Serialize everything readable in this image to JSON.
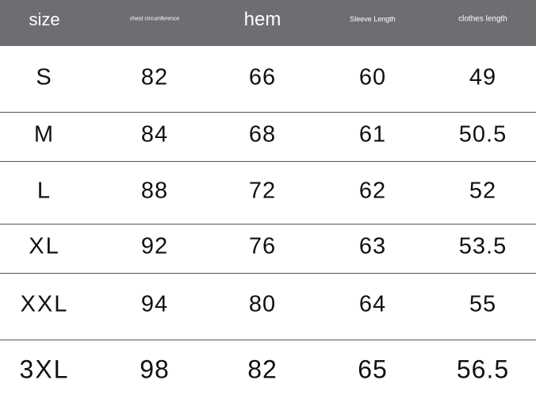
{
  "header_color": "#6e6d72",
  "headers": [
    "size",
    "chest circumference",
    "hem",
    "Sleeve Length",
    "clothes length"
  ],
  "rows": [
    [
      "S",
      "82",
      "66",
      "60",
      "49"
    ],
    [
      "M",
      "84",
      "68",
      "61",
      "50.5"
    ],
    [
      "L",
      "88",
      "72",
      "62",
      "52"
    ],
    [
      "XL",
      "92",
      "76",
      "63",
      "53.5"
    ],
    [
      "XXL",
      "94",
      "80",
      "64",
      "55"
    ],
    [
      "3XL",
      "98",
      "82",
      "65",
      "56.5"
    ]
  ]
}
